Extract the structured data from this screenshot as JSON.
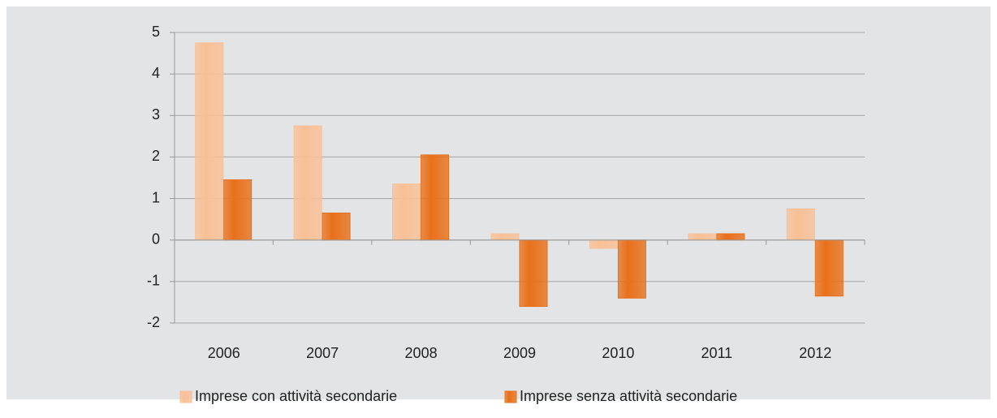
{
  "chart_data": {
    "type": "bar",
    "categories": [
      "2006",
      "2007",
      "2008",
      "2009",
      "2010",
      "2011",
      "2012"
    ],
    "series": [
      {
        "name": "Imprese con attività secondarie",
        "color": "#f9c096",
        "values": [
          4.75,
          2.75,
          1.35,
          0.15,
          -0.2,
          0.15,
          0.75
        ]
      },
      {
        "name": "Imprese senza attività secondarie",
        "color": "#e8701a",
        "values": [
          1.45,
          0.65,
          2.05,
          -1.6,
          -1.4,
          0.15,
          -1.35
        ]
      }
    ],
    "ylim": [
      -2,
      5
    ],
    "yticks": [
      -2,
      -1,
      0,
      1,
      2,
      3,
      4,
      5
    ],
    "grid": true,
    "legend": "bottom"
  }
}
